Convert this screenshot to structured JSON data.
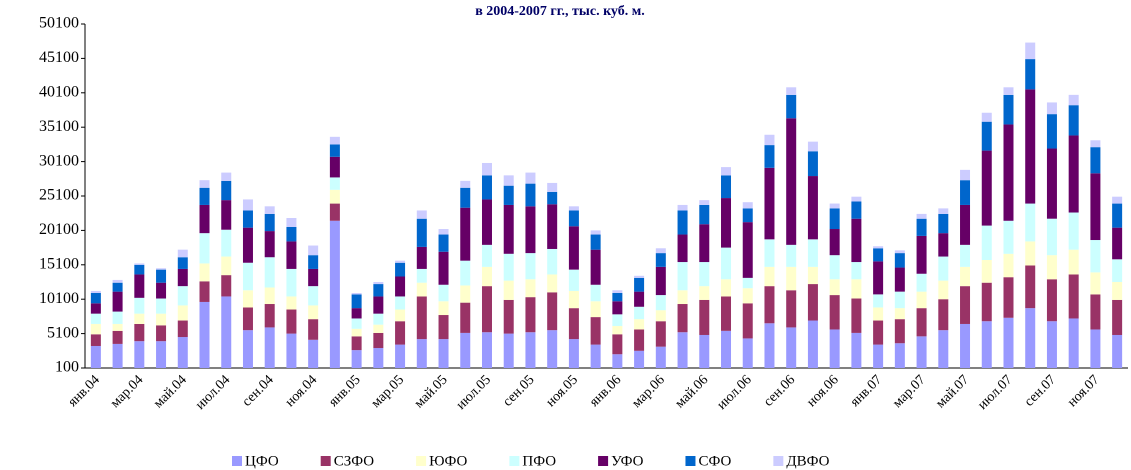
{
  "chart_data": {
    "type": "stacked_bar",
    "title": "в 2004-2007 гг., тыс. куб. м.",
    "categories": [
      "янв.04",
      null,
      "мар.04",
      null,
      "май.04",
      null,
      "июл.04",
      null,
      "сен.04",
      null,
      "ноя.04",
      null,
      "янв.05",
      null,
      "мар.05",
      null,
      "май.05",
      null,
      "июл.05",
      null,
      "сен.05",
      null,
      "ноя.05",
      null,
      "янв.06",
      null,
      "мар.06",
      null,
      "май.06",
      null,
      "июл.06",
      null,
      "сен.06",
      null,
      "ноя.06",
      null,
      "янв.07",
      null,
      "мар.07",
      null,
      "май.07",
      null,
      "июл.07",
      null,
      "сен.07",
      null,
      "ноя.07",
      null
    ],
    "series": [
      {
        "name": "ЦФО",
        "color": "#9999ff",
        "values": [
          3300,
          3600,
          4000,
          4000,
          4600,
          9700,
          10500,
          5600,
          6000,
          5100,
          4200,
          21500,
          2700,
          3000,
          3500,
          4300,
          4300,
          5200,
          5300,
          5100,
          5300,
          5600,
          4300,
          3500,
          2100,
          2600,
          3200,
          5300,
          4900,
          5500,
          4400,
          6600,
          6000,
          7000,
          5700,
          5200,
          3500,
          3700,
          4700,
          5600,
          6500,
          6900,
          7400,
          8800,
          6900,
          7300,
          5700,
          4900
        ]
      },
      {
        "name": "СЗФО",
        "color": "#993366",
        "values": [
          1700,
          1900,
          2500,
          2300,
          2400,
          3000,
          3100,
          3300,
          3400,
          3500,
          3000,
          2500,
          2000,
          2200,
          3400,
          6200,
          3500,
          4400,
          6700,
          4900,
          5100,
          5500,
          4500,
          4000,
          2900,
          3100,
          3700,
          4100,
          5100,
          5000,
          5100,
          5400,
          5400,
          5300,
          5000,
          5000,
          3500,
          3500,
          4100,
          4500,
          5500,
          5600,
          5900,
          6200,
          6100,
          6400,
          5100,
          5100
        ]
      },
      {
        "name": "ЮФО",
        "color": "#ffffcc",
        "values": [
          1500,
          1000,
          1500,
          1700,
          2200,
          2600,
          2700,
          2500,
          2400,
          1900,
          2000,
          2000,
          1100,
          1200,
          1700,
          2000,
          2000,
          2500,
          2800,
          2800,
          2600,
          2600,
          2500,
          2300,
          1200,
          1500,
          1600,
          2000,
          2000,
          2500,
          2200,
          2800,
          3400,
          2500,
          2300,
          2800,
          1900,
          1600,
          2400,
          2700,
          2800,
          3300,
          3400,
          3500,
          3500,
          3600,
          3200,
          2600
        ]
      },
      {
        "name": "ПФО",
        "color": "#ccffff",
        "values": [
          1500,
          1800,
          2300,
          2200,
          2800,
          4400,
          3900,
          4000,
          4400,
          4000,
          2800,
          1800,
          1500,
          1600,
          1900,
          2000,
          2400,
          3600,
          3200,
          3900,
          3800,
          3700,
          3100,
          2400,
          1700,
          1800,
          2200,
          4100,
          3500,
          4600,
          1500,
          4000,
          3200,
          4000,
          3500,
          2500,
          1900,
          2400,
          2600,
          3500,
          3200,
          5000,
          4800,
          5500,
          5300,
          5400,
          4700,
          3300
        ]
      },
      {
        "name": "УФО",
        "color": "#660066",
        "values": [
          1500,
          2900,
          3400,
          2300,
          2500,
          4100,
          4300,
          5100,
          3800,
          4000,
          2500,
          3000,
          1500,
          2500,
          2900,
          3200,
          4800,
          7700,
          6600,
          7100,
          6800,
          6500,
          6300,
          5100,
          1900,
          2200,
          4100,
          4000,
          5500,
          7200,
          8100,
          10400,
          18400,
          9200,
          3800,
          6300,
          4800,
          3500,
          5500,
          3400,
          5800,
          10900,
          14000,
          16600,
          10200,
          11200,
          9700,
          4600
        ]
      },
      {
        "name": "СФО",
        "color": "#0066cc",
        "values": [
          1500,
          1300,
          1400,
          1900,
          1700,
          2500,
          2800,
          2500,
          2500,
          2100,
          2000,
          1800,
          2000,
          1800,
          2000,
          4100,
          2500,
          2900,
          3500,
          2800,
          3300,
          1800,
          2300,
          2200,
          1200,
          2000,
          2000,
          3500,
          2800,
          3300,
          2000,
          3300,
          3400,
          3600,
          3000,
          2500,
          1900,
          2100,
          2500,
          2800,
          3600,
          4200,
          4300,
          4400,
          5000,
          4400,
          3800,
          3500
        ]
      },
      {
        "name": "ДВФО",
        "color": "#ccccff",
        "values": [
          300,
          400,
          200,
          200,
          1100,
          1100,
          1200,
          1600,
          1100,
          1300,
          1400,
          1100,
          200,
          300,
          300,
          1200,
          800,
          1000,
          1800,
          1500,
          1600,
          1300,
          600,
          600,
          400,
          300,
          700,
          800,
          700,
          1200,
          900,
          1500,
          1100,
          1400,
          700,
          700,
          300,
          400,
          700,
          800,
          1500,
          1300,
          1100,
          2400,
          1700,
          1500,
          1000,
          1000
        ]
      }
    ],
    "ylim": [
      100,
      50100
    ],
    "yticks": [
      100,
      5100,
      10100,
      15100,
      20100,
      25100,
      30100,
      35100,
      40100,
      45100,
      50100
    ],
    "grid": false,
    "legend": "bottom"
  }
}
